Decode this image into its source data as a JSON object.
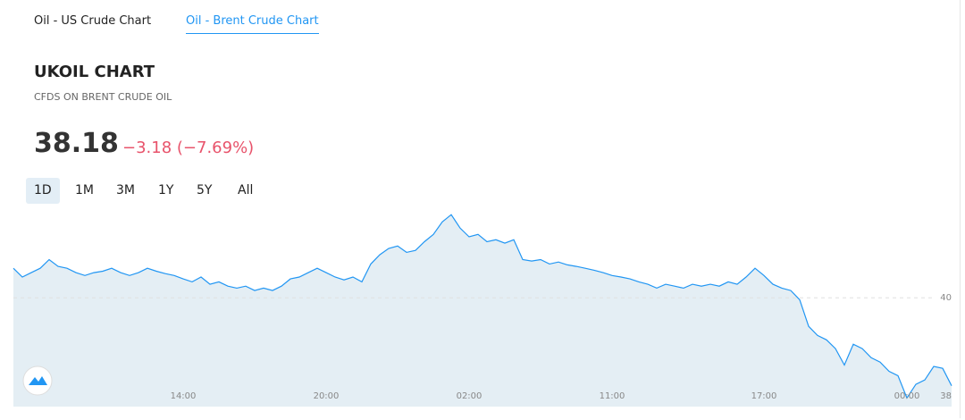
{
  "tabs": [
    "Oil - US Crude Chart",
    "Oil - Brent Crude Chart"
  ],
  "header": {
    "title": "UKOIL CHART",
    "subtitle": "CFDS ON BRENT CRUDE OIL",
    "price": "38.18",
    "change": "−3.18 (−7.69%)"
  },
  "ranges": [
    "1D",
    "1M",
    "3M",
    "1Y",
    "5Y",
    "All"
  ],
  "chart_data": {
    "type": "area",
    "categories": [
      null,
      null,
      null,
      null,
      null,
      null,
      null,
      null,
      null,
      null,
      null,
      null,
      null,
      null,
      null,
      null,
      null,
      null,
      null,
      "14:00",
      null,
      null,
      null,
      null,
      null,
      null,
      null,
      null,
      null,
      null,
      null,
      null,
      null,
      null,
      null,
      "20:00",
      null,
      null,
      null,
      null,
      null,
      null,
      null,
      null,
      null,
      null,
      null,
      null,
      null,
      null,
      null,
      "02:00",
      null,
      null,
      null,
      null,
      null,
      null,
      null,
      null,
      null,
      null,
      null,
      null,
      null,
      null,
      null,
      "11:00",
      null,
      null,
      null,
      null,
      null,
      null,
      null,
      null,
      null,
      null,
      null,
      null,
      null,
      null,
      null,
      null,
      "17:00",
      null,
      null,
      null,
      null,
      null,
      null,
      null,
      null,
      null,
      null,
      null,
      null,
      null,
      null,
      null,
      "00:00",
      null,
      null,
      null,
      null,
      null
    ],
    "values": [
      40.61,
      40.43,
      40.52,
      40.61,
      40.79,
      40.65,
      40.61,
      40.52,
      40.46,
      40.52,
      40.55,
      40.61,
      40.52,
      40.46,
      40.52,
      40.61,
      40.55,
      40.5,
      40.46,
      40.39,
      40.33,
      40.43,
      40.28,
      40.33,
      40.24,
      40.2,
      40.24,
      40.15,
      40.2,
      40.15,
      40.24,
      40.39,
      40.43,
      40.52,
      40.61,
      40.52,
      40.43,
      40.37,
      40.43,
      40.33,
      40.7,
      40.89,
      41.02,
      41.07,
      40.94,
      40.98,
      41.16,
      41.31,
      41.57,
      41.72,
      41.44,
      41.26,
      41.31,
      41.16,
      41.2,
      41.13,
      41.2,
      40.79,
      40.76,
      40.79,
      40.7,
      40.74,
      40.68,
      40.65,
      40.61,
      40.57,
      40.52,
      40.46,
      40.43,
      40.39,
      40.33,
      40.28,
      40.2,
      40.28,
      40.24,
      40.2,
      40.28,
      40.24,
      40.28,
      40.24,
      40.33,
      40.28,
      40.43,
      40.61,
      40.46,
      40.28,
      40.2,
      40.15,
      39.96,
      39.41,
      39.22,
      39.13,
      38.95,
      38.61,
      39.04,
      38.95,
      38.76,
      38.67,
      38.48,
      38.39,
      37.93,
      38.21,
      38.3,
      38.58,
      38.54,
      38.18
    ],
    "color": "#2196f3",
    "fill": "#e4eef4",
    "ylim": [
      37.75,
      42
    ],
    "yticks": [
      40
    ],
    "grid": true,
    "last_label": "38"
  }
}
